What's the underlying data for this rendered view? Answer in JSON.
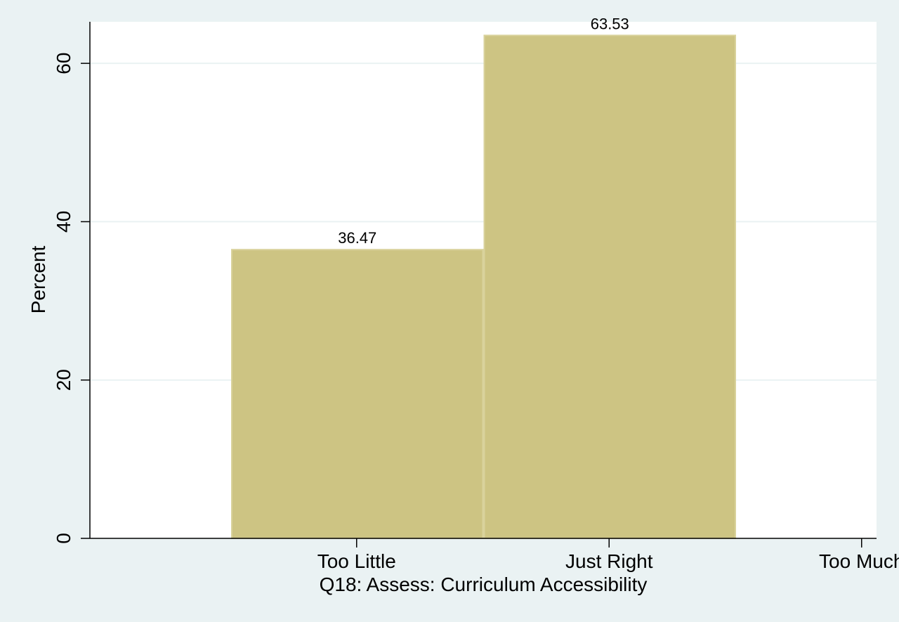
{
  "chart_data": {
    "type": "bar",
    "categories": [
      "Too Little",
      "Just Right",
      "Too Much"
    ],
    "values": [
      36.47,
      63.53,
      null
    ],
    "value_labels": [
      "36.47",
      "63.53",
      ""
    ],
    "xlabel": "Q18: Assess: Curriculum Accessibility",
    "ylabel": "Percent",
    "yticks": [
      0,
      20,
      40,
      60
    ],
    "ylim": [
      0,
      65.25
    ],
    "grid": true,
    "legend": "none",
    "colors": {
      "bar": "#cdc483",
      "bar_edge": "#d9d29c",
      "grid": "#eaf2f3",
      "plot_bg": "#ffffff",
      "outer_bg": "#eaf2f3"
    }
  }
}
